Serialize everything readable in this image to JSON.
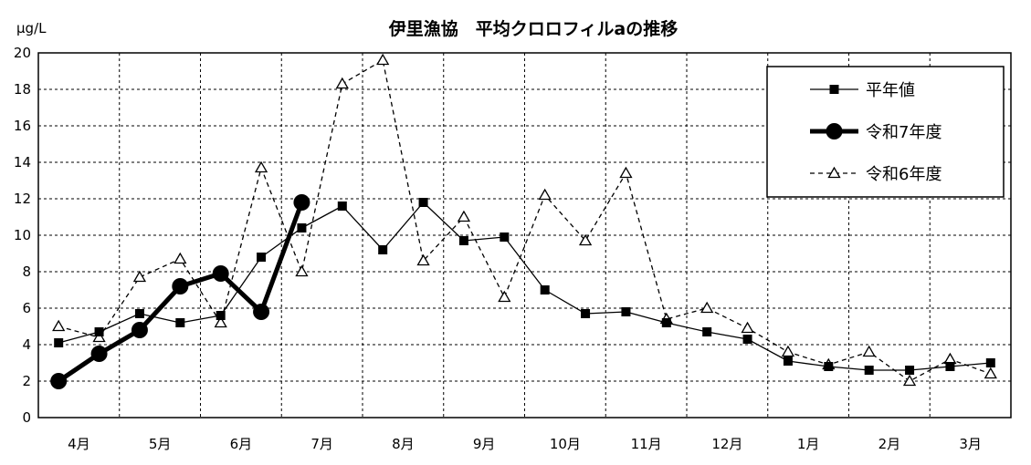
{
  "chart_data": {
    "type": "line",
    "title": "伊里漁協　平均クロロフィルaの推移",
    "ylabel": "μg/L",
    "xlabel": "",
    "ylim": [
      0,
      20
    ],
    "ytick_step": 2,
    "y_ticks": [
      "0",
      "2",
      "4",
      "6",
      "8",
      "10",
      "12",
      "14",
      "16",
      "18",
      "20"
    ],
    "grid": true,
    "legend_position": "top-right",
    "months": [
      "4月",
      "5月",
      "6月",
      "7月",
      "8月",
      "9月",
      "10月",
      "11月",
      "12月",
      "1月",
      "2月",
      "3月"
    ],
    "points_per_month": 2,
    "series": [
      {
        "name": "平年値",
        "style": "solid-square",
        "color": "#000000",
        "values": [
          4.1,
          4.7,
          5.7,
          5.2,
          5.6,
          8.8,
          10.4,
          11.6,
          9.2,
          11.8,
          9.7,
          9.9,
          7.0,
          5.7,
          5.8,
          5.2,
          4.7,
          4.3,
          3.1,
          2.8,
          2.6,
          2.6,
          2.8,
          3.0
        ]
      },
      {
        "name": "令和7年度",
        "style": "bold-circle",
        "color": "#000000",
        "values": [
          2.0,
          3.5,
          4.8,
          7.2,
          7.9,
          5.8,
          11.8
        ]
      },
      {
        "name": "令和6年度",
        "style": "dashed-triangle",
        "color": "#000000",
        "values": [
          5.0,
          4.4,
          7.7,
          8.7,
          5.2,
          13.7,
          8.0,
          18.3,
          19.6,
          8.6,
          11.0,
          6.6,
          12.2,
          9.7,
          13.4,
          5.4,
          6.0,
          4.9,
          3.6,
          2.9,
          3.6,
          2.0,
          3.2,
          2.4
        ]
      }
    ]
  }
}
